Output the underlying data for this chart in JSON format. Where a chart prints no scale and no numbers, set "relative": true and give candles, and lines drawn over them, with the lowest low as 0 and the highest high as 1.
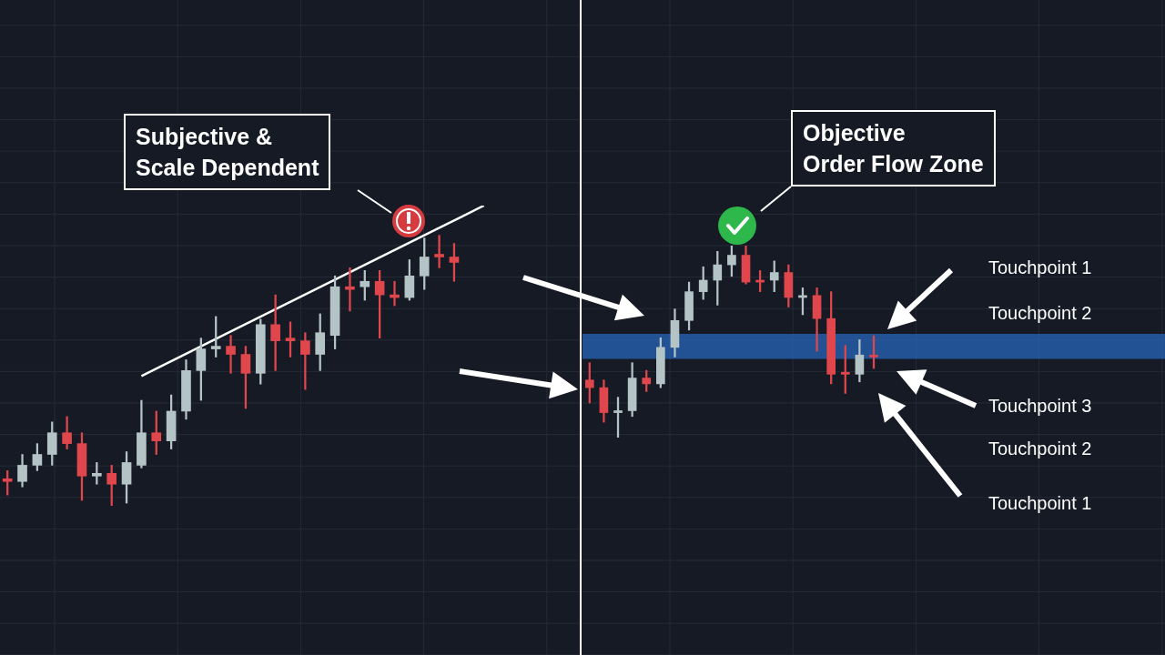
{
  "chart_data": [
    {
      "type": "candlestick",
      "relative": true,
      "grid": true,
      "legend": false,
      "categories": [
        null,
        null,
        null,
        null,
        null,
        null,
        null,
        null,
        null,
        null,
        null,
        null,
        null,
        null,
        null,
        null,
        null,
        null,
        null,
        null,
        null,
        null,
        null,
        null,
        null,
        null,
        null,
        null,
        null,
        null,
        null,
        null,
        null,
        null,
        null,
        null,
        null,
        null,
        null
      ],
      "ohlc": [
        [
          0.1,
          0.13,
          0.04,
          0.09
        ],
        [
          0.09,
          0.19,
          0.07,
          0.15
        ],
        [
          0.15,
          0.23,
          0.13,
          0.19
        ],
        [
          0.19,
          0.31,
          0.15,
          0.27
        ],
        [
          0.27,
          0.33,
          0.21,
          0.23
        ],
        [
          0.23,
          0.27,
          0.02,
          0.11
        ],
        [
          0.11,
          0.16,
          0.08,
          0.12
        ],
        [
          0.12,
          0.15,
          0,
          0.08
        ],
        [
          0.08,
          0.2,
          0.01,
          0.16
        ],
        [
          0.15,
          0.39,
          0.14,
          0.27
        ],
        [
          0.27,
          0.35,
          0.19,
          0.24
        ],
        [
          0.24,
          0.41,
          0.21,
          0.35
        ],
        [
          0.35,
          0.54,
          0.32,
          0.5
        ],
        [
          0.5,
          0.62,
          0.39,
          0.58
        ],
        [
          0.58,
          0.7,
          0.55,
          0.59
        ],
        [
          0.59,
          0.63,
          0.49,
          0.56
        ],
        [
          0.56,
          0.59,
          0.36,
          0.49
        ],
        [
          0.49,
          0.69,
          0.45,
          0.67
        ],
        [
          0.67,
          0.78,
          0.5,
          0.61
        ],
        [
          0.62,
          0.68,
          0.55,
          0.61
        ],
        [
          0.61,
          0.64,
          0.43,
          0.56
        ],
        [
          0.56,
          0.71,
          0.5,
          0.64
        ],
        [
          0.63,
          0.85,
          0.58,
          0.81
        ],
        [
          0.81,
          0.88,
          0.72,
          0.8
        ],
        [
          0.81,
          0.87,
          0.76,
          0.83
        ],
        [
          0.83,
          0.87,
          0.62,
          0.78
        ],
        [
          0.78,
          0.83,
          0.74,
          0.77
        ],
        [
          0.77,
          0.91,
          0.76,
          0.85
        ],
        [
          0.85,
          0.99,
          0.8,
          0.92
        ],
        [
          0.93,
          1,
          0.88,
          0.92
        ],
        [
          0.92,
          0.97,
          0.83,
          0.9
        ],
        null,
        null,
        null,
        null,
        null,
        null,
        null,
        null
      ],
      "colors": [
        "#e0474c",
        "#b4c4c6",
        "#b4c4c6",
        "#b4c4c6",
        "#e0474c",
        "#e0474c",
        "#b4c4c6",
        "#e0474c",
        "#b4c4c6",
        "#b4c4c6",
        "#e0474c",
        "#b4c4c6",
        "#b4c4c6",
        "#b4c4c6",
        "#b4c4c6",
        "#e0474c",
        "#e0474c",
        "#b4c4c6",
        "#e0474c",
        "#e0474c",
        "#e0474c",
        "#b4c4c6",
        "#b4c4c6",
        "#e0474c",
        "#b4c4c6",
        "#e0474c",
        "#e0474c",
        "#b4c4c6",
        "#b4c4c6",
        "#e0474c",
        "#e0474c",
        null,
        null,
        null,
        null,
        null,
        null,
        null,
        null
      ],
      "series": [
        {
          "type": "line",
          "color": "#ffffff",
          "values": [
            null,
            null,
            null,
            null,
            null,
            null,
            null,
            null,
            null,
            0.48,
            null,
            null,
            null,
            null,
            null,
            null,
            null,
            null,
            null,
            null,
            null,
            null,
            null,
            null,
            null,
            null,
            null,
            null,
            null,
            null,
            null,
            null,
            1.11,
            null,
            null,
            null,
            null,
            null,
            null
          ]
        }
      ],
      "annotations": [
        "Subjective &\nScale Dependent"
      ]
    },
    {
      "type": "candlestick",
      "relative": true,
      "grid": true,
      "legend": false,
      "categories": [
        null,
        null,
        null,
        null,
        null,
        null,
        null,
        null,
        null,
        null,
        null,
        null,
        null,
        null,
        null,
        null,
        null,
        null,
        null,
        null,
        null,
        null,
        null,
        null,
        null,
        null,
        null,
        null,
        null,
        null,
        null,
        null,
        null,
        null,
        null,
        null,
        null,
        null,
        null,
        null,
        null
      ],
      "ohlc": [
        [
          0.3,
          0.39,
          0.18,
          0.26
        ],
        [
          0.26,
          0.3,
          0.08,
          0.13
        ],
        [
          0.13,
          0.21,
          0,
          0.14
        ],
        [
          0.14,
          0.39,
          0.11,
          0.31
        ],
        [
          0.31,
          0.35,
          0.24,
          0.28
        ],
        [
          0.28,
          0.52,
          0.26,
          0.47
        ],
        [
          0.47,
          0.67,
          0.42,
          0.61
        ],
        [
          0.61,
          0.81,
          0.56,
          0.76
        ],
        [
          0.76,
          0.89,
          0.72,
          0.82
        ],
        [
          0.82,
          0.97,
          0.69,
          0.9
        ],
        [
          0.9,
          1,
          0.84,
          0.95
        ],
        [
          0.95,
          1,
          0.8,
          0.81
        ],
        [
          0.82,
          0.87,
          0.76,
          0.81
        ],
        [
          0.82,
          0.92,
          0.76,
          0.86
        ],
        [
          0.86,
          0.9,
          0.68,
          0.73
        ],
        [
          0.73,
          0.78,
          0.64,
          0.74
        ],
        [
          0.74,
          0.78,
          0.45,
          0.62
        ],
        [
          0.62,
          0.76,
          0.28,
          0.33
        ],
        [
          0.34,
          0.48,
          0.23,
          0.33
        ],
        [
          0.33,
          0.51,
          0.29,
          0.43
        ],
        [
          0.43,
          0.53,
          0.36,
          0.42
        ],
        null,
        null,
        null,
        null,
        null,
        null,
        null,
        null,
        null,
        null,
        null,
        null,
        null,
        null,
        null,
        null,
        null,
        null,
        null,
        null
      ],
      "colors": [
        "#e0474c",
        "#e0474c",
        "#b4c4c6",
        "#b4c4c6",
        "#e0474c",
        "#b4c4c6",
        "#b4c4c6",
        "#b4c4c6",
        "#b4c4c6",
        "#b4c4c6",
        "#b4c4c6",
        "#e0474c",
        "#e0474c",
        "#b4c4c6",
        "#e0474c",
        "#b4c4c6",
        "#e0474c",
        "#e0474c",
        "#e0474c",
        "#b4c4c6",
        "#e0474c",
        null,
        null,
        null,
        null,
        null,
        null,
        null,
        null,
        null,
        null,
        null,
        null,
        null,
        null,
        null,
        null,
        null,
        null,
        null,
        null
      ],
      "bands": [
        {
          "axis": "y",
          "from": 0.41,
          "to": 0.54,
          "color": "#2a6fd0"
        }
      ],
      "annotations": [
        "Objective\nOrder Flow Zone",
        "Touchpoint 1",
        "Touchpoint 2",
        "Touchpoint 3",
        "Touchpoint 2",
        "Touchpoint 1"
      ]
    }
  ]
}
